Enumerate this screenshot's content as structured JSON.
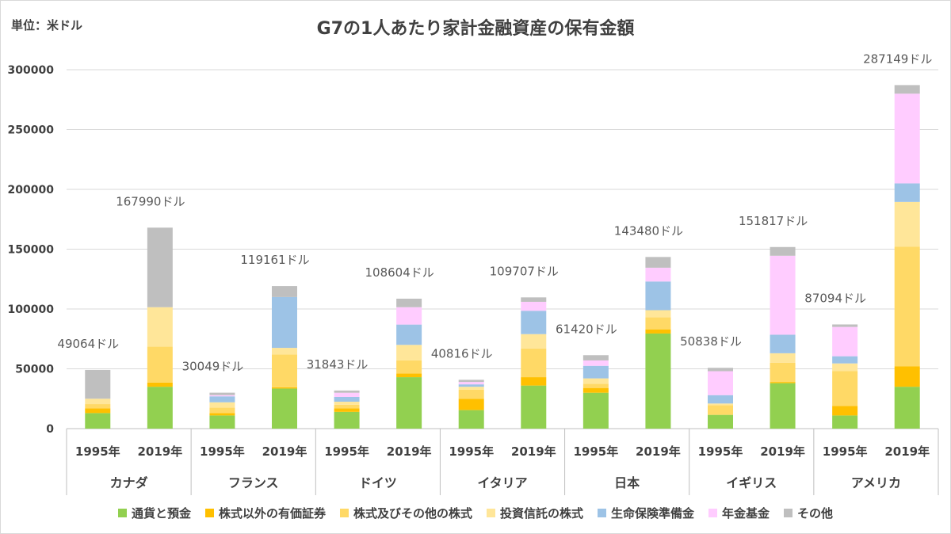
{
  "unit_label": "単位：米ドル",
  "chart_data": {
    "type": "bar",
    "stacked": true,
    "title": "G7の1人あたり家計金融資産の保有金額",
    "ylim": [
      0,
      300000
    ],
    "yticks": [
      0,
      50000,
      100000,
      150000,
      200000,
      250000,
      300000
    ],
    "grid": true,
    "legend_position": "bottom",
    "groups": [
      {
        "name": "カナダ",
        "years": [
          "1995年",
          "2019年"
        ]
      },
      {
        "name": "フランス",
        "years": [
          "1995年",
          "2019年"
        ]
      },
      {
        "name": "ドイツ",
        "years": [
          "1995年",
          "2019年"
        ]
      },
      {
        "name": "イタリア",
        "years": [
          "1995年",
          "2019年"
        ]
      },
      {
        "name": "日本",
        "years": [
          "1995年",
          "2019年"
        ]
      },
      {
        "name": "イギリス",
        "years": [
          "1995年",
          "2019年"
        ]
      },
      {
        "name": "アメリカ",
        "years": [
          "1995年",
          "2019年"
        ]
      }
    ],
    "categories": [
      "カナダ 1995年",
      "カナダ 2019年",
      "フランス 1995年",
      "フランス 2019年",
      "ドイツ 1995年",
      "ドイツ 2019年",
      "イタリア 1995年",
      "イタリア 2019年",
      "日本 1995年",
      "日本 2019年",
      "イギリス 1995年",
      "イギリス 2019年",
      "アメリカ 1995年",
      "アメリカ 2019年"
    ],
    "totals_labels": [
      "49064ドル",
      "167990ドル",
      "30049ドル",
      "119161ドル",
      "31843ドル",
      "108604ドル",
      "40816ドル",
      "109707ドル",
      "61420ドル",
      "143480ドル",
      "50838ドル",
      "151817ドル",
      "87094ドル",
      "287149ドル"
    ],
    "totals": [
      49064,
      167990,
      30049,
      119161,
      31843,
      108604,
      40816,
      109707,
      61420,
      143480,
      50838,
      151817,
      87094,
      287149
    ],
    "series": [
      {
        "name": "通貨と預金",
        "color": "#92d050",
        "values": [
          13000,
          35000,
          11000,
          33500,
          14000,
          43000,
          15500,
          36000,
          30000,
          79500,
          11500,
          38000,
          11000,
          35000
        ]
      },
      {
        "name": "株式以外の有価証券",
        "color": "#ffc000",
        "values": [
          4000,
          3500,
          2000,
          1000,
          3000,
          3000,
          9500,
          7000,
          4000,
          3500,
          0,
          1000,
          8000,
          17000
        ]
      },
      {
        "name": "株式及びその他の株式",
        "color": "#ffd966",
        "values": [
          3500,
          30000,
          4500,
          27500,
          3000,
          11000,
          7500,
          24000,
          3500,
          10000,
          8000,
          16000,
          29000,
          100000
        ]
      },
      {
        "name": "投資信託の株式",
        "color": "#ffe699",
        "values": [
          4500,
          33000,
          4500,
          5500,
          2500,
          13000,
          2500,
          12000,
          4500,
          6000,
          1500,
          8000,
          6500,
          37500
        ]
      },
      {
        "name": "生命保険準備金",
        "color": "#9dc3e6",
        "values": [
          0,
          0,
          5000,
          42500,
          4000,
          17000,
          2000,
          19500,
          10500,
          24000,
          7000,
          15500,
          6000,
          15500
        ]
      },
      {
        "name": "年金基金",
        "color": "#ffccff",
        "values": [
          0,
          0,
          1000,
          0,
          3500,
          14500,
          2000,
          7500,
          4500,
          11500,
          20000,
          66000,
          24500,
          75000
        ]
      },
      {
        "name": "その他",
        "color": "#bfbfbf",
        "values": [
          24064,
          66490,
          2049,
          9161,
          1843,
          7104,
          1816,
          3707,
          4420,
          8980,
          2838,
          7317,
          2094,
          7149
        ]
      }
    ]
  }
}
